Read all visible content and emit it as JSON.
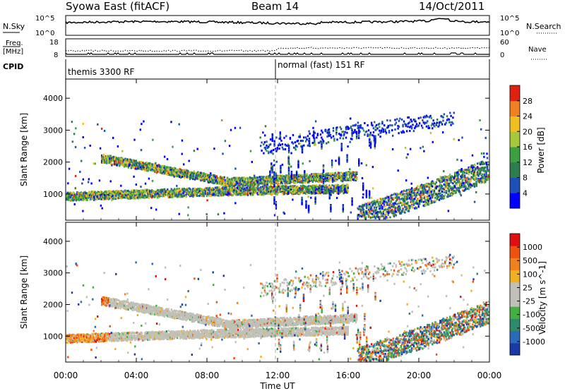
{
  "header": {
    "left_title": "Syowa East (fitACF)",
    "center_title": "Beam 14",
    "right_title": "14/Oct/2011"
  },
  "nsky_panel": {
    "label": "N.Sky",
    "right_label": "N.Search",
    "tick_top": "10^5",
    "tick_bottom": "10^0",
    "right_tick_top": "10^5",
    "right_tick_bottom": "10^0"
  },
  "freq_panel": {
    "label_line1": "Freq.",
    "label_line2": "[MHz]",
    "right_label": "Nave",
    "left_ticks": [
      "18",
      "8"
    ],
    "right_ticks": [
      "60",
      "0"
    ]
  },
  "cpid_panel": {
    "label": "CPID",
    "segments": [
      {
        "text": "themis 3300 RF",
        "start_hour": 0
      },
      {
        "text": "normal (fast) 151 RF",
        "start_hour": 12
      }
    ]
  },
  "power_panel": {
    "ylabel": "Slant Range [km]",
    "yticks": [
      "1000",
      "2000",
      "3000",
      "4000"
    ],
    "colorbar_label": "Power [dB]",
    "colorbar_ticks": [
      "4",
      "8",
      "12",
      "16",
      "20",
      "24",
      "28"
    ],
    "colors": [
      "#0000ff",
      "#1f4fb8",
      "#2e7d4f",
      "#3aa040",
      "#a8c83c",
      "#f0c020",
      "#f08020",
      "#e02010"
    ]
  },
  "velocity_panel": {
    "ylabel": "Slant Range [km]",
    "yticks": [
      "1000",
      "2000",
      "3000",
      "4000"
    ],
    "colorbar_label": "Velocity [m s^-1]",
    "colorbar_ticks": [
      "1000",
      "500",
      "100",
      "25",
      "-25",
      "-100",
      "-500",
      "-1000"
    ],
    "colors": [
      "#1a3aa8",
      "#2a6ab8",
      "#2e8a6a",
      "#44b040",
      "#c0c0b8",
      "#c0c0b8",
      "#f0b020",
      "#f08020",
      "#f05010",
      "#e01010"
    ]
  },
  "x_axis": {
    "ticks": [
      "00:00",
      "04:00",
      "08:00",
      "12:00",
      "16:00",
      "20:00",
      "00:00"
    ],
    "label": "Time UT"
  },
  "chart_data": {
    "type": "heatmap",
    "title": "Syowa East (fitACF) Beam 14 14/Oct/2011",
    "xlabel": "Time UT",
    "ylabel": "Slant Range [km]",
    "xlim": [
      0,
      24
    ],
    "ylim": [
      180,
      4600
    ],
    "colorbars": [
      {
        "name": "Power [dB]",
        "range": [
          0,
          30
        ]
      },
      {
        "name": "Velocity [m s^-1]",
        "range": [
          -1000,
          1000
        ]
      }
    ],
    "scatter_bands": [
      {
        "name": "ring-arc",
        "t_start": 2.0,
        "t_end": 16.5,
        "range_start": 2150,
        "range_mid": 1400,
        "range_end": 1600
      },
      {
        "name": "lower-band",
        "t_start": 0.0,
        "t_end": 16.0,
        "range_start": 950,
        "range_mid": 1100,
        "range_end": 1200
      },
      {
        "name": "night-echoes",
        "t_start": 16.5,
        "t_end": 24.0,
        "range_start": 300,
        "range_mid": 1000,
        "range_end": 1800
      },
      {
        "name": "far-range",
        "t_start": 11.0,
        "t_end": 22.0,
        "range_start": 2500,
        "range_mid": 3000,
        "range_end": 3400
      }
    ]
  }
}
